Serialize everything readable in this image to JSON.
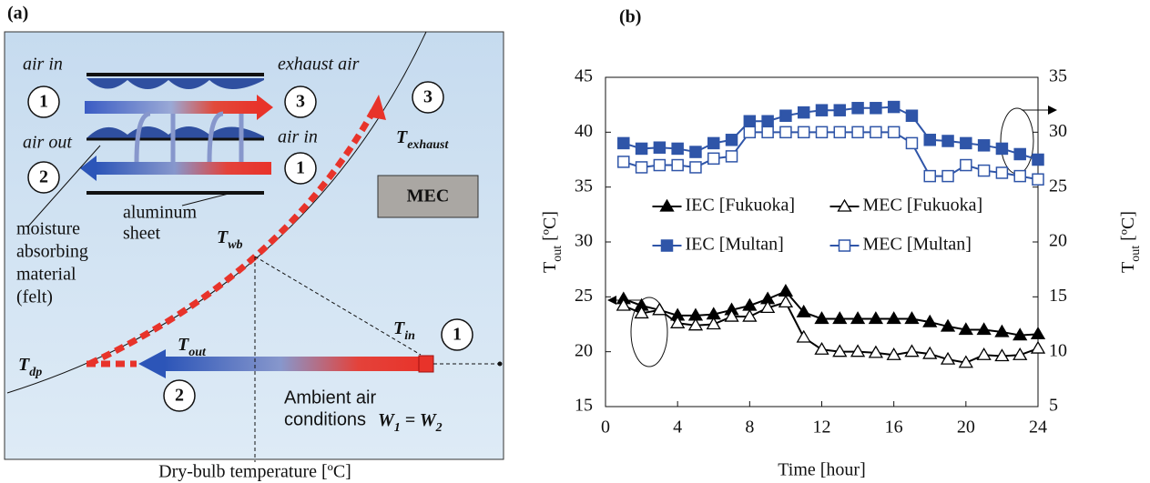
{
  "panel_a": {
    "label": "(a)",
    "air_in_top": "air in",
    "exhaust_air": "exhaust air",
    "air_out": "air out",
    "air_in_bottom": "air in",
    "state_numbers": [
      "1",
      "3",
      "2",
      "1",
      "3",
      "1",
      "2"
    ],
    "mec": "MEC",
    "felt_label": [
      "moisture",
      "absorbing",
      "material",
      "(felt)"
    ],
    "sheet_label": [
      "aluminum",
      "sheet"
    ],
    "t_exhaust": [
      "T",
      "exhaust"
    ],
    "t_wb": [
      "T",
      "wb"
    ],
    "t_dp": [
      "T",
      "dp"
    ],
    "t_out": [
      "T",
      "out"
    ],
    "t_in": [
      "T",
      "in"
    ],
    "ambient_label": [
      "Ambient air",
      "conditions"
    ],
    "w_equation": [
      "W",
      "1",
      " = W",
      "2"
    ],
    "x_label": "Dry-bulb temperature [ºC]"
  },
  "chart_data": {
    "type": "line",
    "panel_label": "(b)",
    "xlabel": "Time [hour]",
    "ylabel": [
      "T",
      "out",
      " [ºC]"
    ],
    "y2label": [
      "T",
      "out",
      " [ºC]"
    ],
    "x": [
      1,
      2,
      3,
      4,
      5,
      6,
      7,
      8,
      9,
      10,
      11,
      12,
      13,
      14,
      15,
      16,
      17,
      18,
      19,
      20,
      21,
      22,
      23,
      24
    ],
    "xlim": [
      0,
      24
    ],
    "xticks": [
      0,
      4,
      8,
      12,
      16,
      20,
      24
    ],
    "ylim": [
      15,
      45
    ],
    "yticks": [
      15,
      20,
      25,
      30,
      35,
      40,
      45
    ],
    "y2lim": [
      5,
      35
    ],
    "y2ticks": [
      5,
      10,
      15,
      20,
      25,
      30,
      35
    ],
    "legend": "center",
    "series": [
      {
        "name": "IEC [Fukuoka]",
        "color": "#000000",
        "marker": "triangle",
        "filled": true,
        "values": [
          24.8,
          24.2,
          23.8,
          23.3,
          23.3,
          23.4,
          23.8,
          24.2,
          24.8,
          25.5,
          23.6,
          23,
          23,
          23,
          23,
          23,
          23,
          22.7,
          22.3,
          22,
          22,
          21.8,
          21.5,
          21.6
        ]
      },
      {
        "name": "MEC [Fukuoka]",
        "color": "#000000",
        "marker": "triangle",
        "filled": false,
        "values": [
          24.2,
          23.5,
          23.8,
          22.6,
          22.4,
          22.5,
          23.2,
          23.2,
          24,
          24.5,
          21.3,
          20.2,
          20,
          20,
          19.9,
          19.7,
          20,
          19.8,
          19.3,
          19,
          19.7,
          19.6,
          19.7,
          20.3
        ]
      },
      {
        "name": "IEC [Multan]",
        "color": "#2f55a8",
        "marker": "square",
        "filled": true,
        "axis": "y2",
        "values": [
          29,
          28.5,
          28.6,
          28.5,
          28.2,
          29,
          29.3,
          31,
          31,
          31.5,
          31.8,
          32,
          32,
          32.2,
          32.2,
          32.3,
          31.5,
          29.3,
          29.2,
          29,
          28.8,
          28.5,
          28,
          27.5
        ]
      },
      {
        "name": "MEC [Multan]",
        "color": "#2f55a8",
        "marker": "square",
        "filled": false,
        "axis": "y2",
        "values": [
          27.3,
          26.8,
          27,
          27,
          26.8,
          27.6,
          27.8,
          30,
          30,
          30,
          30,
          30,
          30,
          30,
          30,
          30,
          29,
          26,
          26,
          27,
          26.5,
          26.3,
          26,
          25.7
        ]
      }
    ]
  }
}
